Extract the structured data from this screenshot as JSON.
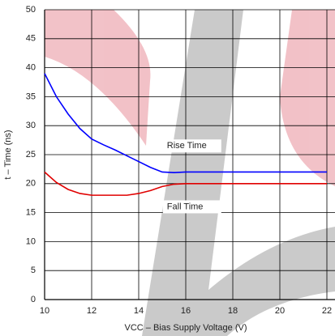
{
  "chart_data": {
    "type": "line",
    "xlabel": "VCC – Bias Supply Voltage (V)",
    "ylabel": "t – Time (ns)",
    "x": [
      10,
      10.5,
      11,
      11.5,
      12,
      12.5,
      13,
      13.5,
      14,
      14.5,
      15,
      15.5,
      16,
      17,
      18,
      19,
      20,
      21,
      22
    ],
    "series": [
      {
        "name": "Rise Time",
        "color": "#0000ff",
        "values": [
          39,
          35,
          32,
          29.5,
          27.7,
          26.7,
          25.8,
          24.8,
          23.8,
          22.8,
          22,
          21.9,
          22,
          22,
          22,
          22,
          22,
          22,
          22
        ]
      },
      {
        "name": "Fall Time",
        "color": "#e00000",
        "values": [
          22,
          20.2,
          19,
          18.3,
          18,
          18,
          18,
          18,
          18.3,
          18.8,
          19.5,
          19.9,
          20,
          20,
          20,
          20,
          20,
          20,
          20
        ]
      }
    ],
    "xlim": [
      10,
      22
    ],
    "xticks": [
      10,
      12,
      14,
      16,
      18,
      20,
      22
    ],
    "ylim": [
      0,
      50
    ],
    "yticks": [
      0,
      5,
      10,
      15,
      20,
      25,
      30,
      35,
      40,
      45,
      50
    ],
    "grid": true
  }
}
